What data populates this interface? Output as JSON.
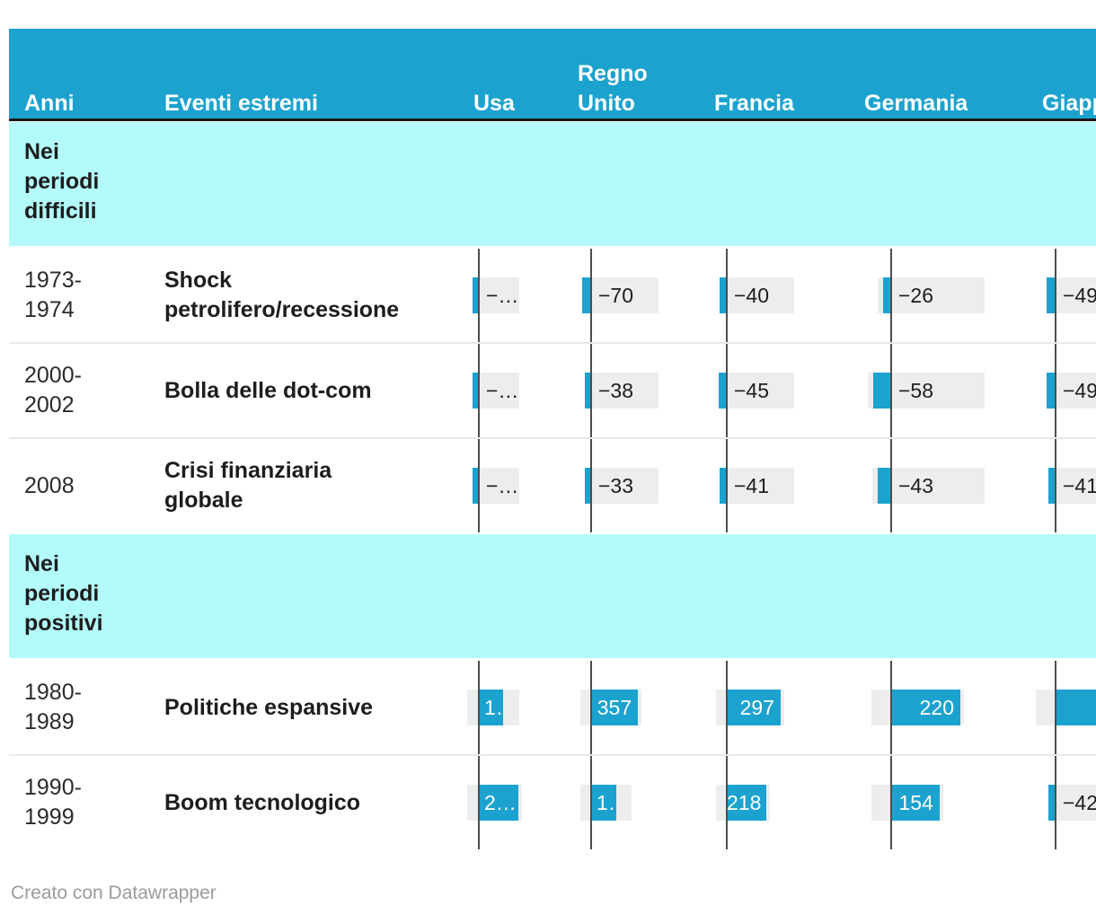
{
  "colors": {
    "header_bg": "#1CA2CE",
    "header_border": "#191919",
    "section_bg": "#B3FBFB",
    "bar": "#1CA2CE",
    "label_chip": "#EDEDED",
    "zero_axis": "#4D4D4D",
    "row_divider": "#E9E9E9",
    "text_dark": "#1D1D1D",
    "bar_text_light": "#FFFFFF",
    "footer_text": "#9B9B9B"
  },
  "header": {
    "cells": [
      {
        "id": "anni",
        "text": "Anni"
      },
      {
        "id": "eventi",
        "text": "Eventi estremi"
      },
      {
        "id": "usa",
        "text": "Usa"
      },
      {
        "id": "regno-unito",
        "text": "Regno\nUnito"
      },
      {
        "id": "francia",
        "text": "Francia"
      },
      {
        "id": "germania",
        "text": "Germania"
      },
      {
        "id": "giappone",
        "text": "Giappone"
      }
    ]
  },
  "sections": [
    {
      "title": "Nei\nperiodi\ndifficili",
      "rows": [
        {
          "anni": "1973-\n1974",
          "evento": "Shock\npetrolifero/recessione",
          "bars": [
            {
              "label": "−…",
              "value": -48,
              "estimated": true
            },
            {
              "label": "−70",
              "value": -70
            },
            {
              "label": "−40",
              "value": -40
            },
            {
              "label": "−26",
              "value": -26
            },
            {
              "label": "−49",
              "value": -49
            }
          ]
        },
        {
          "anni": "2000-\n2002",
          "evento": "Bolla delle dot-com",
          "bars": [
            {
              "label": "−…",
              "value": -49,
              "estimated": true
            },
            {
              "label": "−38",
              "value": -38
            },
            {
              "label": "−45",
              "value": -45
            },
            {
              "label": "−58",
              "value": -58
            },
            {
              "label": "−49",
              "value": -49
            }
          ]
        },
        {
          "anni": "2008",
          "evento": "Crisi finanziaria\nglobale",
          "bars": [
            {
              "label": "−…",
              "value": -38,
              "estimated": true
            },
            {
              "label": "−33",
              "value": -33
            },
            {
              "label": "−41",
              "value": -41
            },
            {
              "label": "−43",
              "value": -43
            },
            {
              "label": "−41",
              "value": -41
            }
          ]
        }
      ]
    },
    {
      "title": "Nei\nperiodi\npositivi",
      "rows": [
        {
          "anni": "1980-\n1989",
          "evento": "Politiche espansive",
          "bars": [
            {
              "label": "1…",
              "value": 180,
              "estimated": true
            },
            {
              "label": "357",
              "value": 357
            },
            {
              "label": "297",
              "value": 297
            },
            {
              "label": "220",
              "value": 220
            },
            {
              "label": "",
              "value": 400,
              "estimated": true
            }
          ]
        },
        {
          "anni": "1990-\n1999",
          "evento": "Boom tecnologico",
          "bars": [
            {
              "label": "2…",
              "value": 290,
              "estimated": true
            },
            {
              "label": "1…",
              "value": 190,
              "estimated": true
            },
            {
              "label": "218",
              "value": 218
            },
            {
              "label": "154",
              "value": 154
            },
            {
              "label": "−42",
              "value": -42
            }
          ]
        }
      ]
    }
  ],
  "footer": {
    "credit": "Creato con Datawrapper"
  },
  "chart_data": {
    "type": "table",
    "title": "",
    "column_headers": [
      "Anni",
      "Eventi estremi",
      "Usa",
      "Regno Unito",
      "Francia",
      "Germania",
      "Giappone"
    ],
    "sections": [
      "Nei periodi difficili",
      "Nei periodi positivi"
    ],
    "rows": [
      {
        "section": "Nei periodi difficili",
        "anni": "1973-1974",
        "evento": "Shock petrolifero/recessione",
        "usa": null,
        "regno_unito": -70,
        "francia": -40,
        "germania": -26,
        "giappone": -49
      },
      {
        "section": "Nei periodi difficili",
        "anni": "2000-2002",
        "evento": "Bolla delle dot-com",
        "usa": null,
        "regno_unito": -38,
        "francia": -45,
        "germania": -58,
        "giappone": -49
      },
      {
        "section": "Nei periodi difficili",
        "anni": "2008",
        "evento": "Crisi finanziaria globale",
        "usa": null,
        "regno_unito": -33,
        "francia": -41,
        "germania": -43,
        "giappone": -41
      },
      {
        "section": "Nei periodi positivi",
        "anni": "1980-1989",
        "evento": "Politiche espansive",
        "usa": null,
        "regno_unito": 357,
        "francia": 297,
        "germania": 220,
        "giappone": null
      },
      {
        "section": "Nei periodi positivi",
        "anni": "1990-1999",
        "evento": "Boom tecnologico",
        "usa": null,
        "regno_unito": null,
        "francia": 218,
        "germania": 154,
        "giappone": -42
      }
    ]
  }
}
